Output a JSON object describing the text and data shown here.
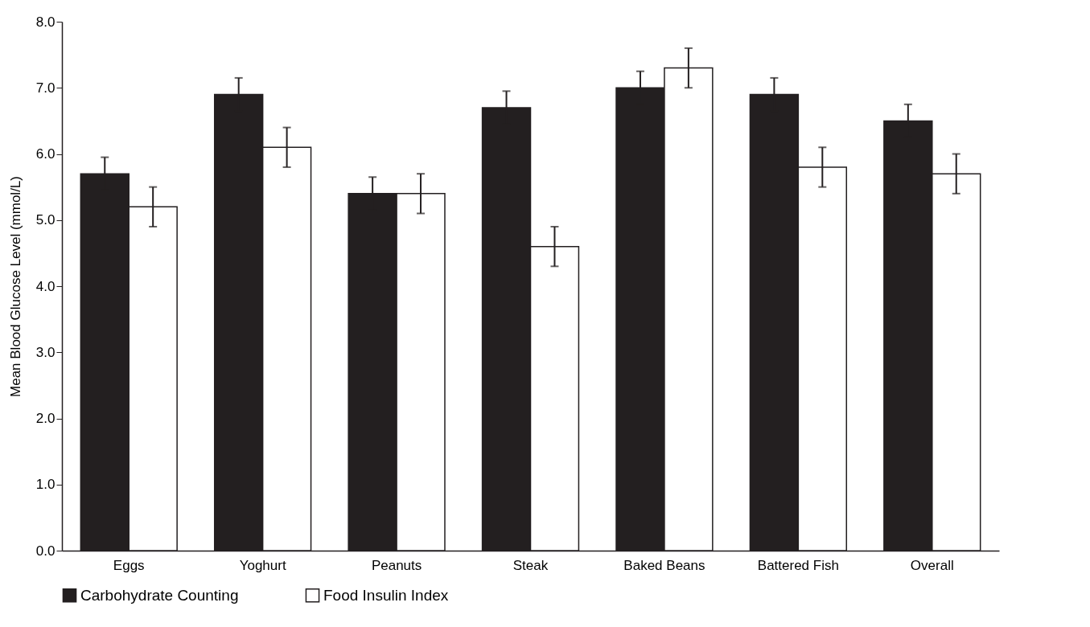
{
  "chart_data": {
    "type": "bar",
    "ylabel": "Mean Blood Glucose Level (mmol/L)",
    "categories": [
      "Eggs",
      "Yoghurt",
      "Peanuts",
      "Steak",
      "Baked Beans",
      "Battered Fish",
      "Overall"
    ],
    "series": [
      {
        "name": "Carbohydrate Counting",
        "color": "#231f20",
        "values": [
          5.7,
          6.9,
          5.4,
          6.7,
          7.0,
          6.9,
          6.5
        ],
        "errors": [
          0.25,
          0.25,
          0.25,
          0.25,
          0.25,
          0.25,
          0.25
        ]
      },
      {
        "name": "Food Insulin Index",
        "color": "#ffffff",
        "values": [
          5.2,
          6.1,
          5.4,
          4.6,
          7.3,
          5.8,
          5.7
        ],
        "errors": [
          0.3,
          0.3,
          0.3,
          0.3,
          0.3,
          0.3,
          0.3
        ]
      }
    ],
    "ylim": [
      0,
      8
    ],
    "yticks": [
      {
        "value": 0,
        "label": "0.0"
      },
      {
        "value": 1,
        "label": "1.0"
      },
      {
        "value": 2,
        "label": "2.0"
      },
      {
        "value": 3,
        "label": "3.0"
      },
      {
        "value": 4,
        "label": "4.0"
      },
      {
        "value": 5,
        "label": "5.0"
      },
      {
        "value": 6,
        "label": "6.0"
      },
      {
        "value": 7,
        "label": "7.0"
      },
      {
        "value": 8,
        "label": "8.0"
      }
    ],
    "grid": false,
    "legend": "bottom"
  }
}
